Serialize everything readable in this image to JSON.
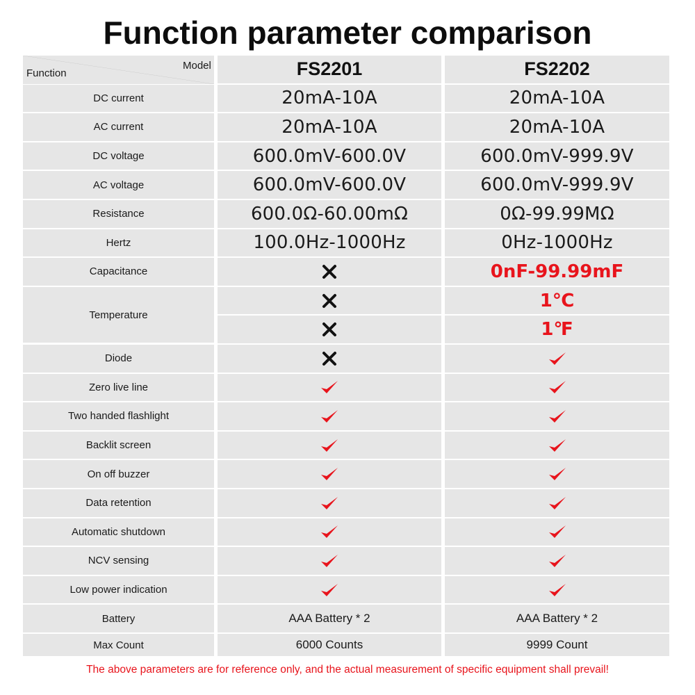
{
  "title": "Function parameter comparison",
  "header": {
    "model_label": "Model",
    "function_label": "Function",
    "model_a": "FS2201",
    "model_b": "FS2202"
  },
  "rows": [
    {
      "function": "DC current",
      "a": "20mA-10A",
      "b": "20mA-10A"
    },
    {
      "function": "AC current",
      "a": "20mA-10A",
      "b": "20mA-10A"
    },
    {
      "function": "DC voltage",
      "a": "600.0mV-600.0V",
      "b": "600.0mV-999.9V"
    },
    {
      "function": "AC voltage",
      "a": "600.0mV-600.0V",
      "b": "600.0mV-999.9V"
    },
    {
      "function": "Resistance",
      "a": "600.0Ω-60.00mΩ",
      "b": "0Ω-99.99MΩ"
    },
    {
      "function": "Hertz",
      "a": "100.0Hz-1000Hz",
      "b": "0Hz-1000Hz"
    },
    {
      "function": "Capacitance",
      "b": "0nF-99.99mF"
    },
    {
      "function": "Temperature",
      "b_celsius": "1℃",
      "b_fahrenheit": "1℉"
    },
    {
      "function": "Diode"
    },
    {
      "function": "Zero live line"
    },
    {
      "function": "Two handed flashlight"
    },
    {
      "function": "Backlit screen"
    },
    {
      "function": "On off buzzer"
    },
    {
      "function": "Data retention"
    },
    {
      "function": "Automatic shutdown"
    },
    {
      "function": "NCV sensing"
    },
    {
      "function": "Low power indication"
    },
    {
      "function": "Battery",
      "a": "AAA Battery * 2",
      "b": "AAA Battery * 2"
    },
    {
      "function": "Max Count",
      "a": "6000 Counts",
      "b": "9999 Count"
    }
  ],
  "icons": {
    "no": "cross-icon",
    "yes": "check-icon"
  },
  "colors": {
    "accent_red": "#e8141c",
    "cell_bg": "#e6e6e6"
  },
  "footer": "The above parameters are for reference only, and the actual measurement of specific equipment shall prevail!"
}
